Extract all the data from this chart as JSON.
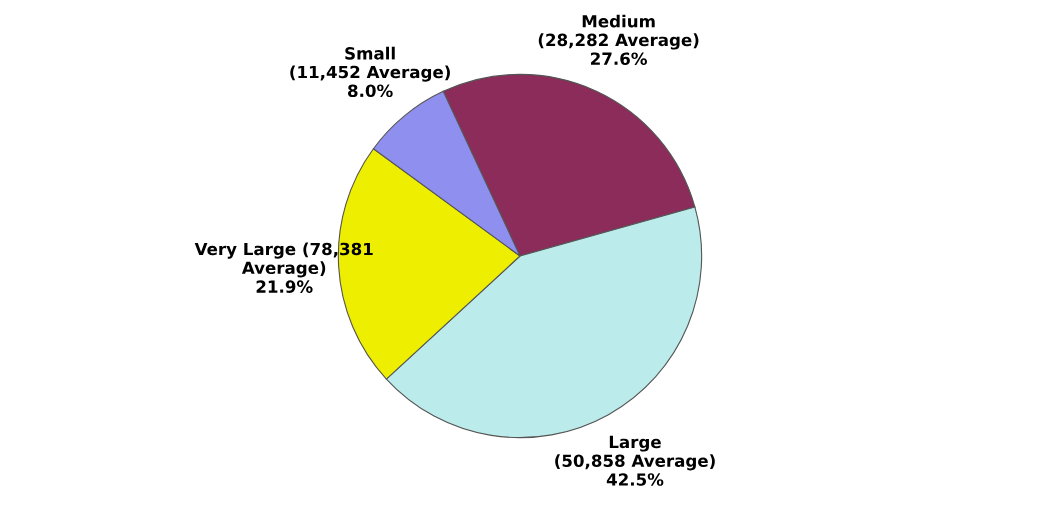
{
  "chart_data": {
    "type": "pie",
    "categories": [
      "Medium\n(28,282 Average)",
      "Large\n(50,858 Average)",
      "Very Large (78,381\nAverage)",
      "Small\n(11,452 Average)"
    ],
    "values": [
      27.6,
      42.5,
      21.9,
      8.0
    ],
    "colors": [
      "#8b2c5a",
      "#bcebeb",
      "#eeee00",
      "#8f8ff0"
    ],
    "value_labels": [
      "27.6%",
      "42.5%",
      "21.9%",
      "8.0%"
    ]
  }
}
